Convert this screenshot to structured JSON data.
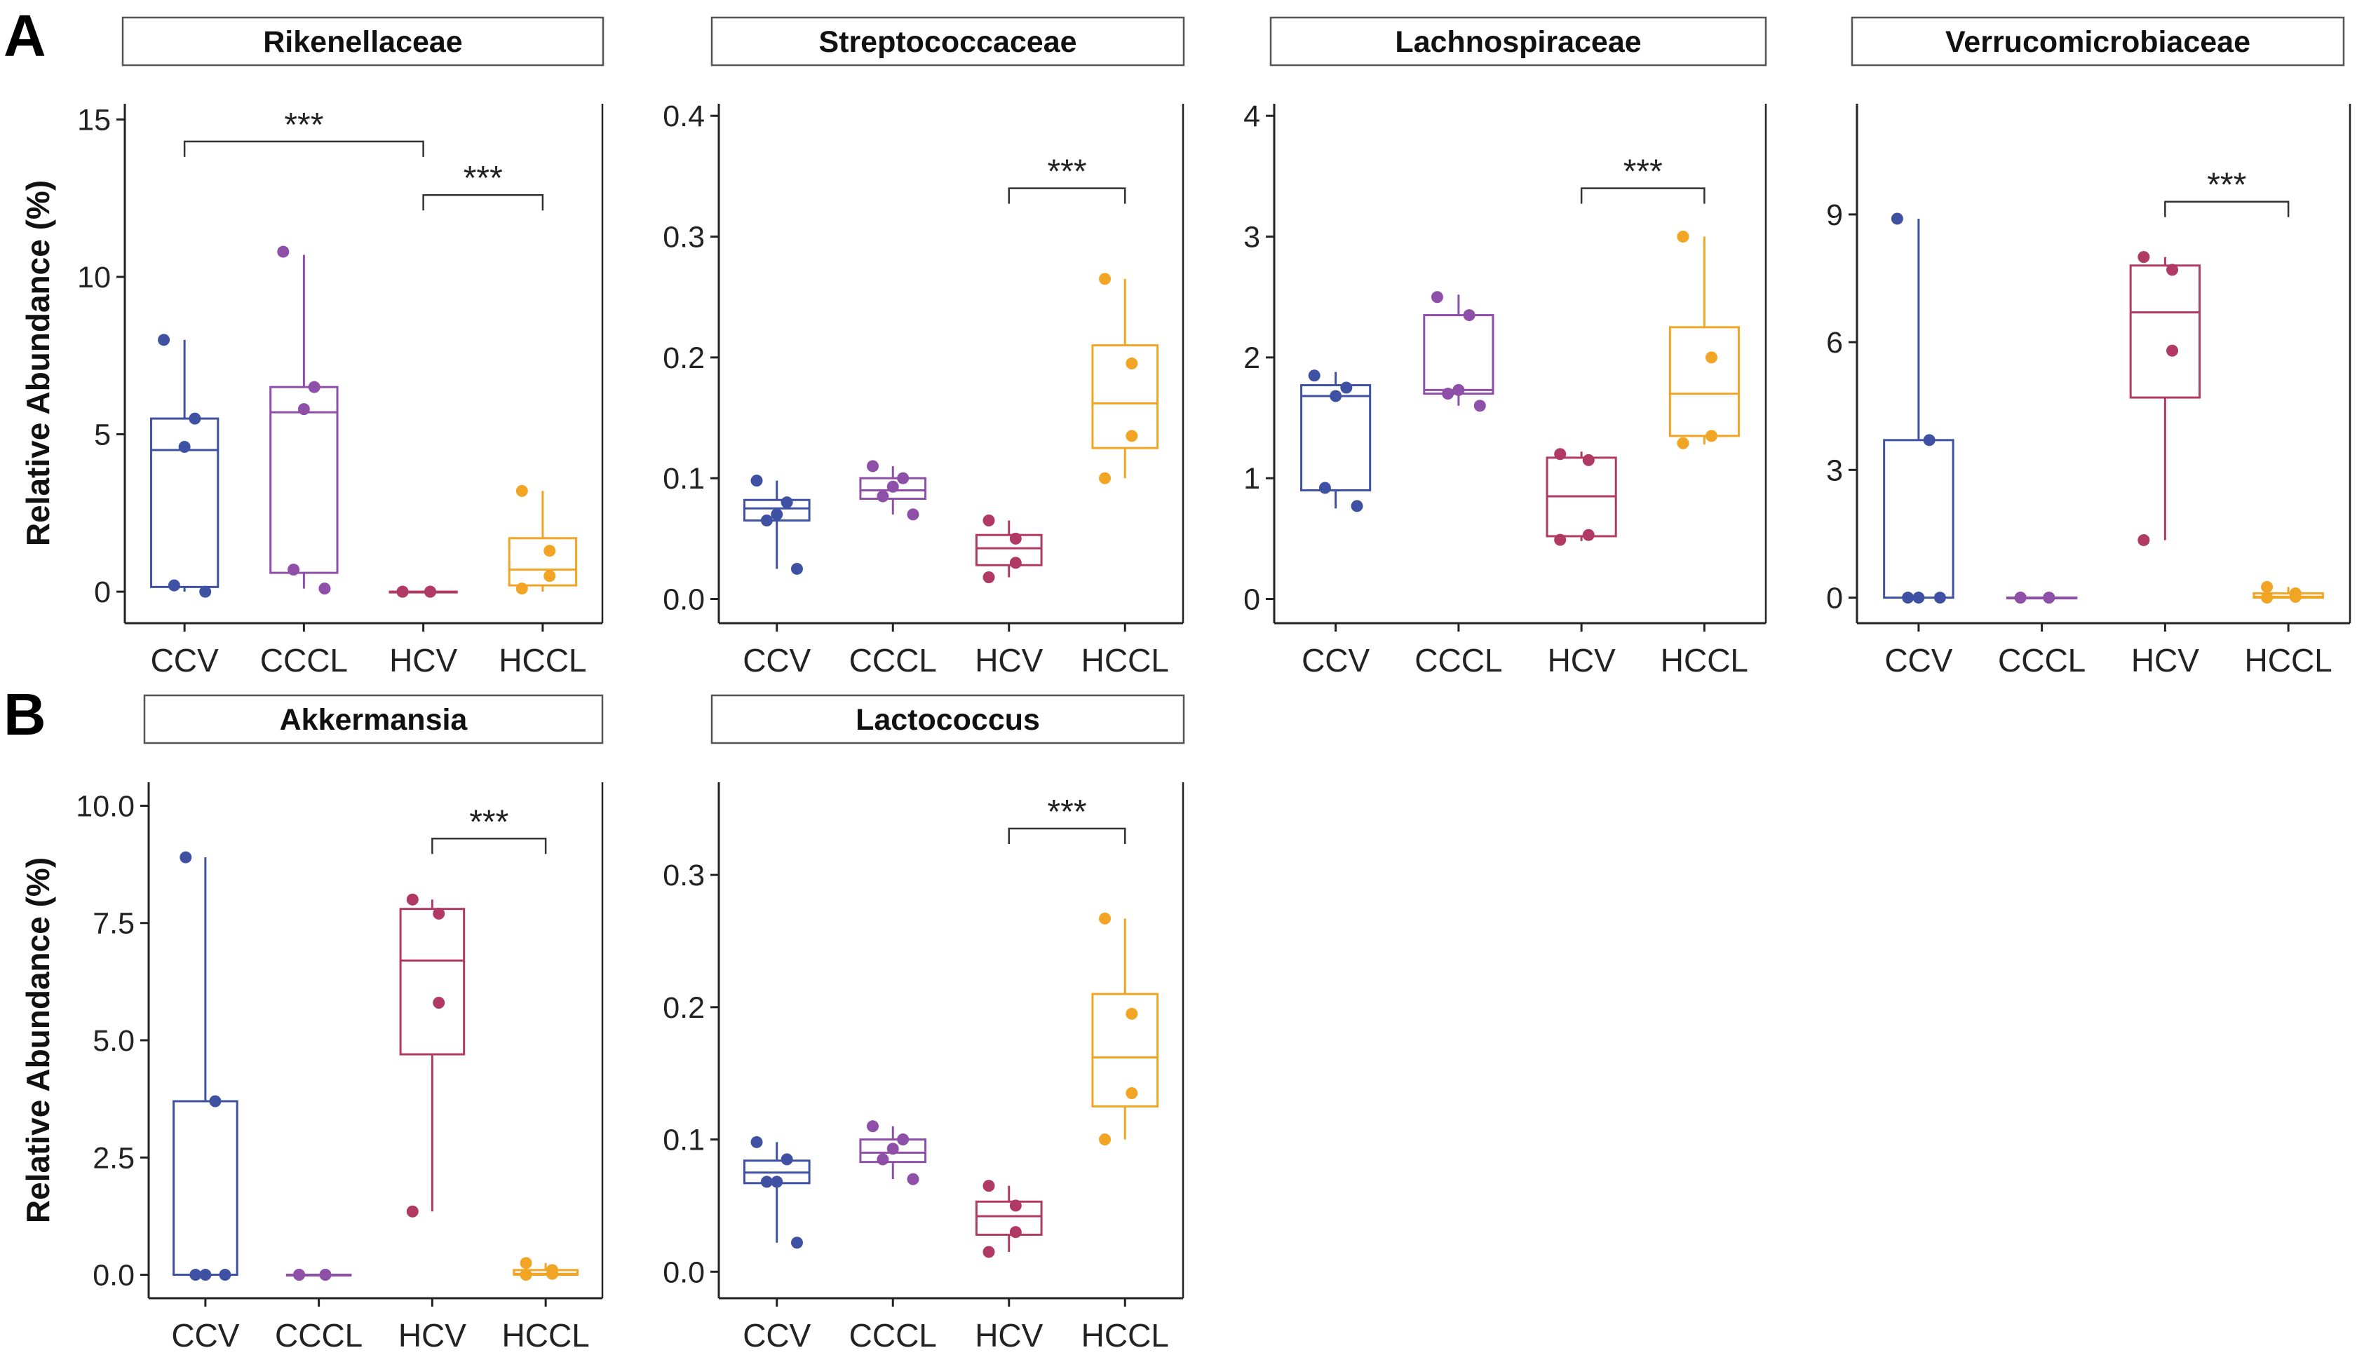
{
  "panel_labels": [
    "A",
    "B"
  ],
  "y_axis_label": "Relative Abundance (%)",
  "colors": {
    "CCV": "#3f51a3",
    "CCCL": "#8e4fa8",
    "HCV": "#b03a63",
    "HCCL": "#f2a524"
  },
  "chart_data": [
    {
      "type": "box",
      "panel": "A",
      "title": "Rikenellaceae",
      "ylabel": "Relative Abundance (%)",
      "ylim": [
        -1.0,
        15.5
      ],
      "yticks": [
        0,
        5,
        10,
        15
      ],
      "yticklabels": [
        "0",
        "5",
        "10",
        "15"
      ],
      "categories": [
        "CCV",
        "CCCL",
        "HCV",
        "HCCL"
      ],
      "boxes": [
        {
          "q1": 0.15,
          "median": 4.5,
          "q3": 5.5,
          "wlow": 0.0,
          "whigh": 8.0,
          "points": [
            8.0,
            5.5,
            4.6,
            0.2,
            0.0
          ]
        },
        {
          "q1": 0.6,
          "median": 5.7,
          "q3": 6.5,
          "wlow": 0.1,
          "whigh": 10.7,
          "points": [
            10.8,
            6.5,
            5.8,
            0.7,
            0.1
          ]
        },
        {
          "q1": 0.0,
          "median": 0.0,
          "q3": 0.0,
          "wlow": 0.0,
          "whigh": 0.0,
          "points": [
            0.0,
            0.0,
            0.0,
            0.0
          ]
        },
        {
          "q1": 0.2,
          "median": 0.7,
          "q3": 1.7,
          "wlow": 0.0,
          "whigh": 3.2,
          "points": [
            3.2,
            1.3,
            0.5,
            0.1
          ]
        }
      ],
      "significance": [
        {
          "from": 0,
          "to": 2,
          "y": 14.3,
          "label": "***"
        },
        {
          "from": 2,
          "to": 3,
          "y": 12.6,
          "label": "***"
        }
      ]
    },
    {
      "type": "box",
      "panel": "A",
      "title": "Streptococcaceae",
      "ylabel": "",
      "ylim": [
        -0.02,
        0.41
      ],
      "yticks": [
        0.0,
        0.1,
        0.2,
        0.3,
        0.4
      ],
      "yticklabels": [
        "0.0",
        "0.1",
        "0.2",
        "0.3",
        "0.4"
      ],
      "categories": [
        "CCV",
        "CCCL",
        "HCV",
        "HCCL"
      ],
      "boxes": [
        {
          "q1": 0.065,
          "median": 0.075,
          "q3": 0.082,
          "wlow": 0.025,
          "whigh": 0.098,
          "points": [
            0.098,
            0.08,
            0.07,
            0.065,
            0.025
          ]
        },
        {
          "q1": 0.083,
          "median": 0.09,
          "q3": 0.1,
          "wlow": 0.07,
          "whigh": 0.11,
          "points": [
            0.11,
            0.1,
            0.093,
            0.085,
            0.07
          ]
        },
        {
          "q1": 0.028,
          "median": 0.042,
          "q3": 0.053,
          "wlow": 0.018,
          "whigh": 0.065,
          "points": [
            0.065,
            0.05,
            0.03,
            0.018
          ]
        },
        {
          "q1": 0.125,
          "median": 0.162,
          "q3": 0.21,
          "wlow": 0.1,
          "whigh": 0.265,
          "points": [
            0.265,
            0.195,
            0.135,
            0.1
          ]
        }
      ],
      "significance": [
        {
          "from": 2,
          "to": 3,
          "y": 0.34,
          "label": "***"
        }
      ]
    },
    {
      "type": "box",
      "panel": "A",
      "title": "Lachnospiraceae",
      "ylabel": "",
      "ylim": [
        -0.2,
        4.1
      ],
      "yticks": [
        0,
        1,
        2,
        3,
        4
      ],
      "yticklabels": [
        "0",
        "1",
        "2",
        "3",
        "4"
      ],
      "categories": [
        "CCV",
        "CCCL",
        "HCV",
        "HCCL"
      ],
      "boxes": [
        {
          "q1": 0.9,
          "median": 1.68,
          "q3": 1.77,
          "wlow": 0.75,
          "whigh": 1.88,
          "points": [
            1.85,
            1.75,
            1.68,
            0.92,
            0.77
          ]
        },
        {
          "q1": 1.7,
          "median": 1.73,
          "q3": 2.35,
          "wlow": 1.6,
          "whigh": 2.52,
          "points": [
            2.5,
            2.35,
            1.73,
            1.7,
            1.6
          ]
        },
        {
          "q1": 0.52,
          "median": 0.85,
          "q3": 1.17,
          "wlow": 0.48,
          "whigh": 1.22,
          "points": [
            1.2,
            1.15,
            0.53,
            0.49
          ]
        },
        {
          "q1": 1.35,
          "median": 1.7,
          "q3": 2.25,
          "wlow": 1.28,
          "whigh": 3.0,
          "points": [
            3.0,
            2.0,
            1.35,
            1.29
          ]
        }
      ],
      "significance": [
        {
          "from": 2,
          "to": 3,
          "y": 3.4,
          "label": "***"
        }
      ]
    },
    {
      "type": "box",
      "panel": "A",
      "title": "Verrucomicrobiaceae",
      "ylabel": "",
      "ylim": [
        -0.6,
        11.6
      ],
      "yticks": [
        0,
        3,
        6,
        9
      ],
      "yticklabels": [
        "0",
        "3",
        "6",
        "9"
      ],
      "categories": [
        "CCV",
        "CCCL",
        "HCV",
        "HCCL"
      ],
      "boxes": [
        {
          "q1": 0.0,
          "median": 0.0,
          "q3": 3.7,
          "wlow": 0.0,
          "whigh": 8.9,
          "points": [
            8.9,
            3.7,
            0.0,
            0.0,
            0.0
          ]
        },
        {
          "q1": 0.0,
          "median": 0.0,
          "q3": 0.0,
          "wlow": 0.0,
          "whigh": 0.0,
          "points": [
            0.0,
            0.0,
            0.0,
            0.0
          ]
        },
        {
          "q1": 4.7,
          "median": 6.7,
          "q3": 7.8,
          "wlow": 1.35,
          "whigh": 8.0,
          "points": [
            8.0,
            7.7,
            5.8,
            1.35
          ]
        },
        {
          "q1": 0.0,
          "median": 0.02,
          "q3": 0.1,
          "wlow": 0.0,
          "whigh": 0.25,
          "points": [
            0.25,
            0.1,
            0.02,
            0.0
          ]
        }
      ],
      "significance": [
        {
          "from": 2,
          "to": 3,
          "y": 9.3,
          "label": "***"
        }
      ]
    },
    {
      "type": "box",
      "panel": "B",
      "title": "Akkermansia",
      "ylabel": "Relative Abundance (%)",
      "ylim": [
        -0.5,
        10.5
      ],
      "yticks": [
        0.0,
        2.5,
        5.0,
        7.5,
        10.0
      ],
      "yticklabels": [
        "0.0",
        "2.5",
        "5.0",
        "7.5",
        "10.0"
      ],
      "categories": [
        "CCV",
        "CCCL",
        "HCV",
        "HCCL"
      ],
      "boxes": [
        {
          "q1": 0.0,
          "median": 0.0,
          "q3": 3.7,
          "wlow": 0.0,
          "whigh": 8.9,
          "points": [
            8.9,
            3.7,
            0.0,
            0.0,
            0.0
          ]
        },
        {
          "q1": 0.0,
          "median": 0.0,
          "q3": 0.0,
          "wlow": 0.0,
          "whigh": 0.0,
          "points": [
            0.0,
            0.0,
            0.0,
            0.0
          ]
        },
        {
          "q1": 4.7,
          "median": 6.7,
          "q3": 7.8,
          "wlow": 1.35,
          "whigh": 8.0,
          "points": [
            8.0,
            7.7,
            5.8,
            1.35
          ]
        },
        {
          "q1": 0.0,
          "median": 0.02,
          "q3": 0.1,
          "wlow": 0.0,
          "whigh": 0.25,
          "points": [
            0.25,
            0.1,
            0.02,
            0.0
          ]
        }
      ],
      "significance": [
        {
          "from": 2,
          "to": 3,
          "y": 9.3,
          "label": "***"
        }
      ]
    },
    {
      "type": "box",
      "panel": "B",
      "title": "Lactococcus",
      "ylabel": "",
      "ylim": [
        -0.02,
        0.37
      ],
      "yticks": [
        0.0,
        0.1,
        0.2,
        0.3
      ],
      "yticklabels": [
        "0.0",
        "0.1",
        "0.2",
        "0.3"
      ],
      "categories": [
        "CCV",
        "CCCL",
        "HCV",
        "HCCL"
      ],
      "boxes": [
        {
          "q1": 0.067,
          "median": 0.075,
          "q3": 0.084,
          "wlow": 0.022,
          "whigh": 0.098,
          "points": [
            0.098,
            0.085,
            0.068,
            0.068,
            0.022
          ]
        },
        {
          "q1": 0.083,
          "median": 0.09,
          "q3": 0.1,
          "wlow": 0.07,
          "whigh": 0.11,
          "points": [
            0.11,
            0.1,
            0.093,
            0.085,
            0.07
          ]
        },
        {
          "q1": 0.028,
          "median": 0.042,
          "q3": 0.053,
          "wlow": 0.015,
          "whigh": 0.065,
          "points": [
            0.065,
            0.05,
            0.03,
            0.015
          ]
        },
        {
          "q1": 0.125,
          "median": 0.162,
          "q3": 0.21,
          "wlow": 0.1,
          "whigh": 0.267,
          "points": [
            0.267,
            0.195,
            0.135,
            0.1
          ]
        }
      ],
      "significance": [
        {
          "from": 2,
          "to": 3,
          "y": 0.335,
          "label": "***"
        }
      ]
    }
  ]
}
